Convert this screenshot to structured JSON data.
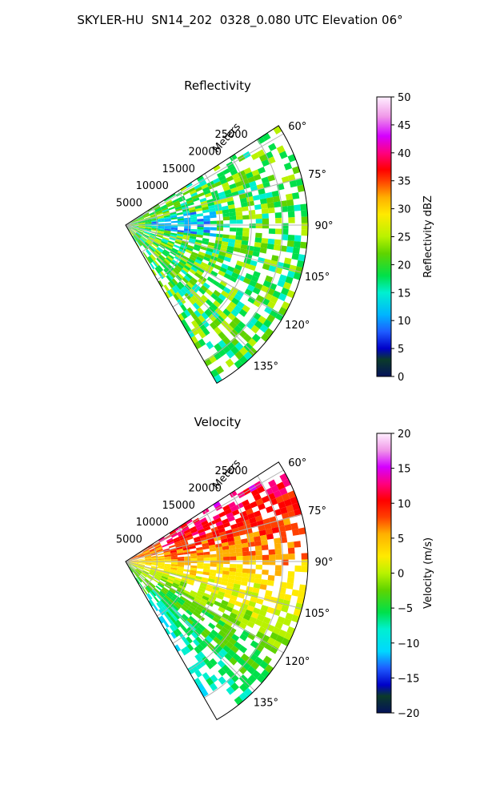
{
  "title": "SKYLER-HU  SN14_202  0328_0.080 UTC Elevation 06°",
  "chart_data": [
    {
      "type": "heatmap",
      "projection": "polar sector",
      "title": "Reflectivity",
      "range_axis_label": "Meters",
      "range_ticks": [
        5000,
        10000,
        15000,
        20000,
        25000
      ],
      "range_tick_labels": [
        "5000",
        "10000",
        "15000",
        "20000",
        "25000"
      ],
      "range_max": 29000,
      "azimuth_range": [
        57,
        150
      ],
      "azimuth_ticks": [
        60,
        75,
        90,
        105,
        120,
        135
      ],
      "azimuth_tick_labels": [
        "60°",
        "75°",
        "90°",
        "105°",
        "120°",
        "135°"
      ],
      "colorbar": {
        "label": "Reflectivity dBZ",
        "range": [
          0,
          50
        ],
        "ticks": [
          0,
          5,
          10,
          15,
          20,
          25,
          30,
          35,
          40,
          45,
          50
        ],
        "tick_labels": [
          "0",
          "5",
          "10",
          "15",
          "20",
          "25",
          "30",
          "35",
          "40",
          "45",
          "50"
        ]
      },
      "typical_value": 22,
      "spread": 6
    },
    {
      "type": "heatmap",
      "projection": "polar sector",
      "title": "Velocity",
      "range_axis_label": "Meters",
      "range_ticks": [
        5000,
        10000,
        15000,
        20000,
        25000
      ],
      "range_tick_labels": [
        "5000",
        "10000",
        "15000",
        "20000",
        "25000"
      ],
      "range_max": 29000,
      "azimuth_range": [
        57,
        150
      ],
      "azimuth_ticks": [
        60,
        75,
        90,
        105,
        120,
        135
      ],
      "azimuth_tick_labels": [
        "60°",
        "75°",
        "90°",
        "105°",
        "120°",
        "135°"
      ],
      "colorbar": {
        "label": "Velocity (m/s)",
        "range": [
          -20,
          20
        ],
        "ticks": [
          -20,
          -15,
          -10,
          -5,
          0,
          5,
          10,
          15,
          20
        ],
        "tick_labels": [
          "−20",
          "−15",
          "−10",
          "−5",
          "0",
          "5",
          "10",
          "15",
          "20"
        ]
      },
      "typical_value": 3,
      "spread": 4
    }
  ]
}
